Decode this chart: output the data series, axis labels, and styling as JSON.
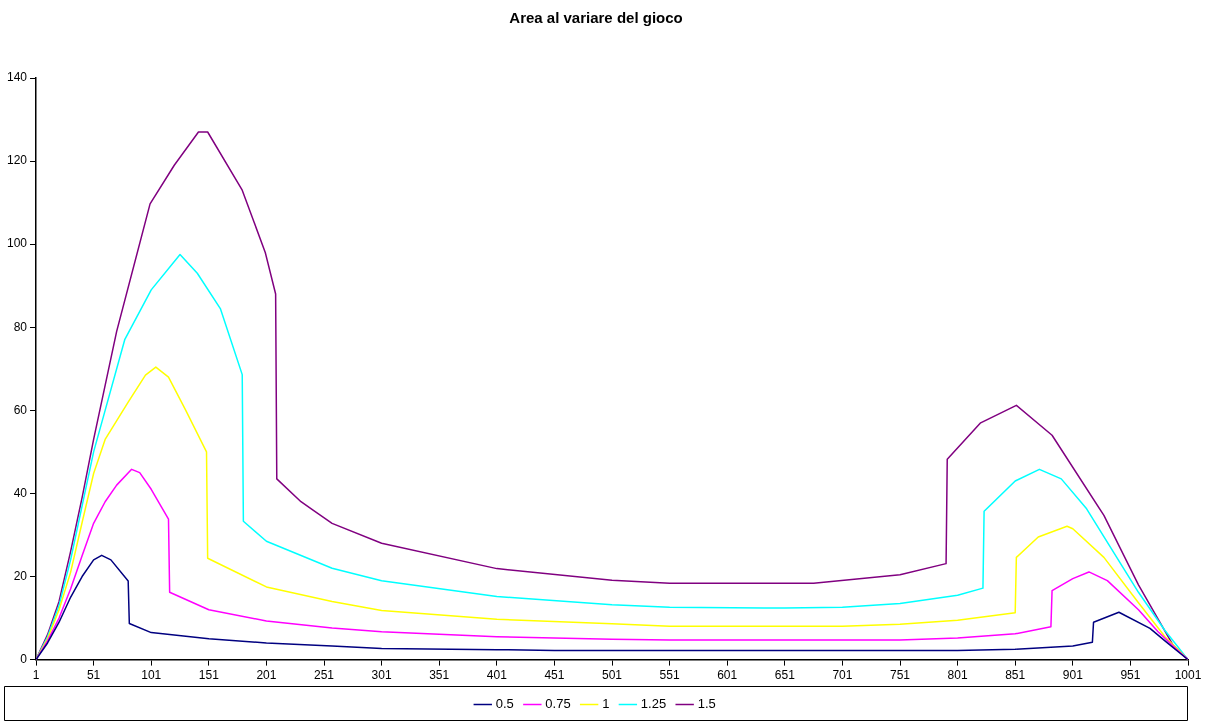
{
  "chart_data": {
    "type": "line",
    "title": "Area al variare del gioco",
    "xlim": [
      1,
      1001
    ],
    "xticks": [
      1,
      51,
      101,
      151,
      201,
      251,
      301,
      351,
      401,
      451,
      501,
      551,
      601,
      651,
      701,
      751,
      801,
      851,
      901,
      951,
      1001
    ],
    "ylim": [
      0,
      140
    ],
    "yticks": [
      0,
      20,
      40,
      60,
      80,
      100,
      120,
      140
    ],
    "grid": false,
    "legend": "bottom",
    "marker": "none",
    "line_style": "solid",
    "series": [
      {
        "name": "0.5",
        "color": "#000080",
        "x": [
          1,
          11,
          21,
          31,
          41,
          51,
          58,
          66,
          81,
          82,
          101,
          151,
          201,
          258,
          301,
          401,
          451,
          801,
          851,
          901,
          918,
          919,
          941,
          968,
          981,
          1001
        ],
        "values": [
          0,
          4,
          9,
          15,
          20,
          24,
          25.1,
          24,
          18.9,
          8.7,
          6.5,
          5,
          4,
          3.3,
          2.7,
          2.4,
          2.2,
          2.2,
          2.5,
          3.3,
          4.2,
          9,
          11.4,
          7.5,
          4.5,
          0
        ]
      },
      {
        "name": "0.75",
        "color": "#ff00ff",
        "x": [
          1,
          11,
          21,
          31,
          41,
          51,
          61,
          71,
          84,
          91,
          101,
          116,
          117,
          151,
          201,
          258,
          301,
          401,
          501,
          551,
          751,
          801,
          851,
          882,
          883,
          901,
          915,
          931,
          958,
          975,
          991,
          1001
        ],
        "values": [
          0,
          4.5,
          10,
          17,
          25,
          32.8,
          38,
          42,
          45.8,
          45,
          41,
          33.8,
          16.2,
          12,
          9.3,
          7.6,
          6.7,
          5.5,
          4.9,
          4.7,
          4.7,
          5.2,
          6.2,
          7.9,
          16.6,
          19.5,
          21.1,
          19,
          12,
          6.7,
          2.5,
          0
        ]
      },
      {
        "name": "1",
        "color": "#ffff00",
        "x": [
          1,
          11,
          21,
          31,
          41,
          51,
          61,
          81,
          96,
          105,
          116,
          131,
          149,
          150,
          201,
          258,
          301,
          401,
          501,
          551,
          701,
          751,
          801,
          851,
          852,
          871,
          896,
          901,
          928,
          958,
          981,
          1001
        ],
        "values": [
          0,
          5,
          12,
          21,
          33,
          44.8,
          53,
          62,
          68.5,
          70.4,
          68,
          60,
          50,
          24.4,
          17.5,
          14,
          11.8,
          9.7,
          8.6,
          8,
          8,
          8.5,
          9.5,
          11.3,
          24.6,
          29.5,
          32.1,
          31.5,
          24.6,
          13.7,
          5.5,
          0
        ]
      },
      {
        "name": "1.25",
        "color": "#00ffff",
        "x": [
          1,
          11,
          21,
          31,
          41,
          51,
          61,
          78,
          101,
          126,
          141,
          161,
          180,
          181,
          201,
          258,
          301,
          401,
          501,
          551,
          651,
          701,
          751,
          801,
          823,
          824,
          851,
          872,
          891,
          913,
          958,
          981,
          1001
        ],
        "values": [
          0,
          5.5,
          13,
          24,
          37,
          50,
          60,
          77,
          89,
          97.5,
          93,
          84.5,
          68.6,
          33.3,
          28.5,
          22,
          19,
          15.2,
          13.2,
          12.6,
          12.4,
          12.6,
          13.5,
          15.5,
          17.2,
          35.7,
          43,
          45.8,
          43.5,
          36.3,
          16.2,
          7,
          0
        ]
      },
      {
        "name": "1.5",
        "color": "#800080",
        "x": [
          1,
          11,
          21,
          31,
          41,
          51,
          71,
          100,
          121,
          142,
          150,
          180,
          200,
          209,
          210,
          231,
          258,
          301,
          401,
          501,
          551,
          676,
          751,
          791,
          792,
          821,
          852,
          883,
          928,
          958,
          988,
          1001
        ],
        "values": [
          0,
          6,
          14,
          26,
          39,
          53,
          79,
          109.7,
          119,
          127,
          127,
          113,
          98,
          88,
          43.5,
          38,
          32.8,
          28,
          21.9,
          19.1,
          18.4,
          18.4,
          20.4,
          23.1,
          48.2,
          57,
          61.2,
          54,
          34.7,
          18,
          3.5,
          0
        ]
      }
    ]
  }
}
